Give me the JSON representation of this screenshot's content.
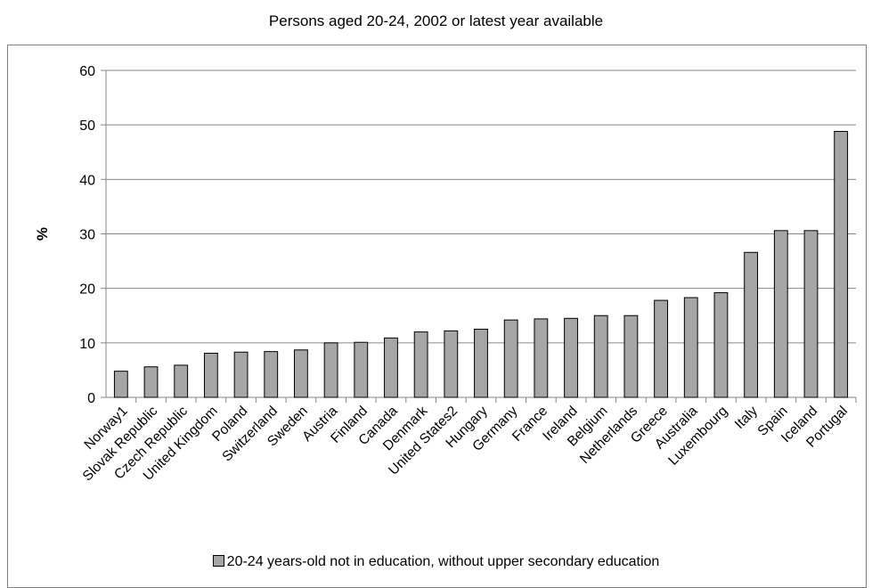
{
  "chart_data": {
    "type": "bar",
    "title": "Persons aged 20-24, 2002 or latest year available",
    "ylabel": "%",
    "xlabel": "",
    "ylim": [
      0,
      60
    ],
    "yticks": [
      0,
      10,
      20,
      30,
      40,
      50,
      60
    ],
    "grid": true,
    "legend_position": "bottom",
    "categories": [
      "Norway1",
      "Slovak Republic",
      "Czech Republic",
      "United Kingdom",
      "Poland",
      "Switzerland",
      "Sweden",
      "Austria",
      "Finland",
      "Canada",
      "Denmark",
      "United States2",
      "Hungary",
      "Germany",
      "France",
      "Ireland",
      "Belgium",
      "Netherlands",
      "Greece",
      "Australia",
      "Luxembourg",
      "Italy",
      "Spain",
      "Iceland",
      "Portugal"
    ],
    "series": [
      {
        "name": "20-24 years-old not in education, without upper secondary education",
        "color": "#a6a6a6",
        "values": [
          4.8,
          5.6,
          5.9,
          8.1,
          8.3,
          8.4,
          8.7,
          10.0,
          10.1,
          10.9,
          12.0,
          12.2,
          12.5,
          14.2,
          14.4,
          14.5,
          15.0,
          15.0,
          17.8,
          18.3,
          19.2,
          26.6,
          30.6,
          30.6,
          48.8
        ]
      }
    ]
  }
}
